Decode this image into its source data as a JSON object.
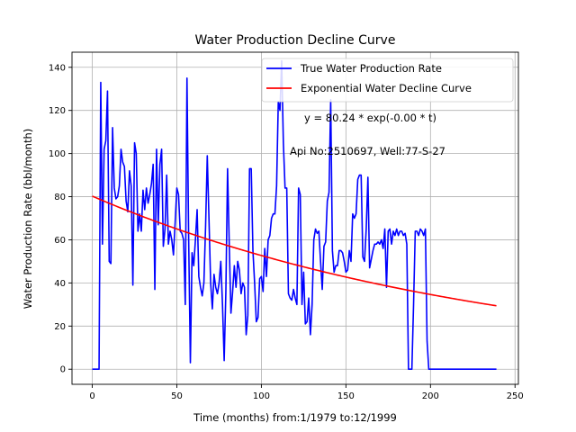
{
  "chart_data": {
    "type": "line",
    "title": "Water Production Decline Curve",
    "xlabel": "Time (months) from:1/1979 to:12/1999",
    "ylabel": "Water Production Rate (bbl/month)",
    "xlim": [
      -12,
      252
    ],
    "ylim": [
      -7,
      147
    ],
    "xticks": [
      0,
      50,
      100,
      150,
      200,
      250
    ],
    "yticks": [
      0,
      20,
      40,
      60,
      80,
      100,
      120,
      140
    ],
    "grid": true,
    "legend_position": "top-right",
    "annotations": [
      "y = 80.24 * exp(-0.00 * t)",
      "Api No:2510697, Well:77-S-27"
    ],
    "series": [
      {
        "name": "True Water Production Rate",
        "color": "#0000ff",
        "points": [
          [
            0,
            0
          ],
          [
            1,
            0
          ],
          [
            2,
            0
          ],
          [
            3,
            0
          ],
          [
            4,
            0
          ],
          [
            5,
            133
          ],
          [
            6,
            58
          ],
          [
            7,
            102
          ],
          [
            8,
            106
          ],
          [
            9,
            129
          ],
          [
            10,
            50
          ],
          [
            11,
            49
          ],
          [
            12,
            112
          ],
          [
            13,
            84
          ],
          [
            14,
            79
          ],
          [
            15,
            80
          ],
          [
            16,
            85
          ],
          [
            17,
            102
          ],
          [
            18,
            96
          ],
          [
            19,
            94
          ],
          [
            20,
            78
          ],
          [
            21,
            73
          ],
          [
            22,
            92
          ],
          [
            23,
            85
          ],
          [
            24,
            39
          ],
          [
            25,
            105
          ],
          [
            26,
            100
          ],
          [
            27,
            64
          ],
          [
            28,
            72
          ],
          [
            29,
            64
          ],
          [
            30,
            83
          ],
          [
            31,
            74
          ],
          [
            32,
            84
          ],
          [
            33,
            77
          ],
          [
            34,
            81
          ],
          [
            35,
            86
          ],
          [
            36,
            95
          ],
          [
            37,
            37
          ],
          [
            38,
            102
          ],
          [
            39,
            67
          ],
          [
            40,
            95
          ],
          [
            41,
            102
          ],
          [
            42,
            57
          ],
          [
            43,
            65
          ],
          [
            44,
            90
          ],
          [
            45,
            58
          ],
          [
            46,
            64
          ],
          [
            47,
            60
          ],
          [
            48,
            53
          ],
          [
            49,
            68
          ],
          [
            50,
            84
          ],
          [
            51,
            81
          ],
          [
            52,
            64
          ],
          [
            53,
            63
          ],
          [
            54,
            60
          ],
          [
            55,
            30
          ],
          [
            56,
            135
          ],
          [
            57,
            60
          ],
          [
            58,
            3
          ],
          [
            59,
            54
          ],
          [
            60,
            48
          ],
          [
            61,
            60
          ],
          [
            62,
            74
          ],
          [
            63,
            43
          ],
          [
            64,
            38
          ],
          [
            65,
            34
          ],
          [
            66,
            40
          ],
          [
            67,
            66
          ],
          [
            68,
            99
          ],
          [
            69,
            70
          ],
          [
            70,
            40
          ],
          [
            71,
            28
          ],
          [
            72,
            44
          ],
          [
            73,
            38
          ],
          [
            74,
            35
          ],
          [
            75,
            40
          ],
          [
            76,
            50
          ],
          [
            77,
            30
          ],
          [
            78,
            4
          ],
          [
            79,
            36
          ],
          [
            80,
            93
          ],
          [
            81,
            58
          ],
          [
            82,
            26
          ],
          [
            83,
            36
          ],
          [
            84,
            48
          ],
          [
            85,
            38
          ],
          [
            86,
            50
          ],
          [
            87,
            46
          ],
          [
            88,
            35
          ],
          [
            89,
            40
          ],
          [
            90,
            38
          ],
          [
            91,
            16
          ],
          [
            92,
            25
          ],
          [
            93,
            93
          ],
          [
            94,
            93
          ],
          [
            95,
            55
          ],
          [
            96,
            40
          ],
          [
            97,
            22
          ],
          [
            98,
            24
          ],
          [
            99,
            42
          ],
          [
            100,
            43
          ],
          [
            101,
            36
          ],
          [
            102,
            56
          ],
          [
            103,
            43
          ],
          [
            104,
            60
          ],
          [
            105,
            62
          ],
          [
            106,
            70
          ],
          [
            107,
            72
          ],
          [
            108,
            72
          ],
          [
            109,
            85
          ],
          [
            110,
            124
          ],
          [
            111,
            120
          ],
          [
            112,
            143
          ],
          [
            113,
            105
          ],
          [
            114,
            84
          ],
          [
            115,
            84
          ],
          [
            116,
            35
          ],
          [
            117,
            33
          ],
          [
            118,
            32
          ],
          [
            119,
            37
          ],
          [
            120,
            33
          ],
          [
            121,
            30
          ],
          [
            122,
            84
          ],
          [
            123,
            81
          ],
          [
            124,
            30
          ],
          [
            125,
            45
          ],
          [
            126,
            21
          ],
          [
            127,
            22
          ],
          [
            128,
            33
          ],
          [
            129,
            16
          ],
          [
            130,
            30
          ],
          [
            131,
            60
          ],
          [
            132,
            65
          ],
          [
            133,
            63
          ],
          [
            134,
            64
          ],
          [
            135,
            50
          ],
          [
            136,
            37
          ],
          [
            137,
            57
          ],
          [
            138,
            59
          ],
          [
            139,
            78
          ],
          [
            140,
            82
          ],
          [
            141,
            125
          ],
          [
            142,
            55
          ],
          [
            143,
            45
          ],
          [
            144,
            48
          ],
          [
            145,
            48
          ],
          [
            146,
            55
          ],
          [
            147,
            55
          ],
          [
            148,
            54
          ],
          [
            149,
            50
          ],
          [
            150,
            45
          ],
          [
            151,
            46
          ],
          [
            152,
            55
          ],
          [
            153,
            50
          ],
          [
            154,
            72
          ],
          [
            155,
            70
          ],
          [
            156,
            72
          ],
          [
            157,
            88
          ],
          [
            158,
            90
          ],
          [
            159,
            90
          ],
          [
            160,
            52
          ],
          [
            161,
            50
          ],
          [
            162,
            65
          ],
          [
            163,
            89
          ],
          [
            164,
            47
          ],
          [
            165,
            51
          ],
          [
            166,
            55
          ],
          [
            167,
            58
          ],
          [
            168,
            58
          ],
          [
            169,
            59
          ],
          [
            170,
            58
          ],
          [
            171,
            60
          ],
          [
            172,
            56
          ],
          [
            173,
            65
          ],
          [
            174,
            38
          ],
          [
            175,
            64
          ],
          [
            176,
            65
          ],
          [
            177,
            58
          ],
          [
            178,
            64
          ],
          [
            179,
            62
          ],
          [
            180,
            65
          ],
          [
            181,
            62
          ],
          [
            182,
            64
          ],
          [
            183,
            64
          ],
          [
            184,
            62
          ],
          [
            185,
            63
          ],
          [
            186,
            58
          ],
          [
            187,
            0
          ],
          [
            188,
            0
          ],
          [
            189,
            0
          ],
          [
            190,
            30
          ],
          [
            191,
            64
          ],
          [
            192,
            64
          ],
          [
            193,
            62
          ],
          [
            194,
            65
          ],
          [
            195,
            64
          ],
          [
            196,
            62
          ],
          [
            197,
            65
          ],
          [
            198,
            13
          ],
          [
            199,
            0
          ],
          [
            200,
            0
          ],
          [
            201,
            0
          ],
          [
            202,
            0
          ],
          [
            203,
            0
          ],
          [
            210,
            0
          ],
          [
            220,
            0
          ],
          [
            230,
            0
          ],
          [
            239,
            0
          ]
        ]
      },
      {
        "name": "Exponential Water Decline Curve",
        "color": "#ff0000",
        "model": {
          "a": 80.24,
          "b": 0.0042,
          "t_start": 0,
          "t_end": 239
        }
      }
    ]
  }
}
